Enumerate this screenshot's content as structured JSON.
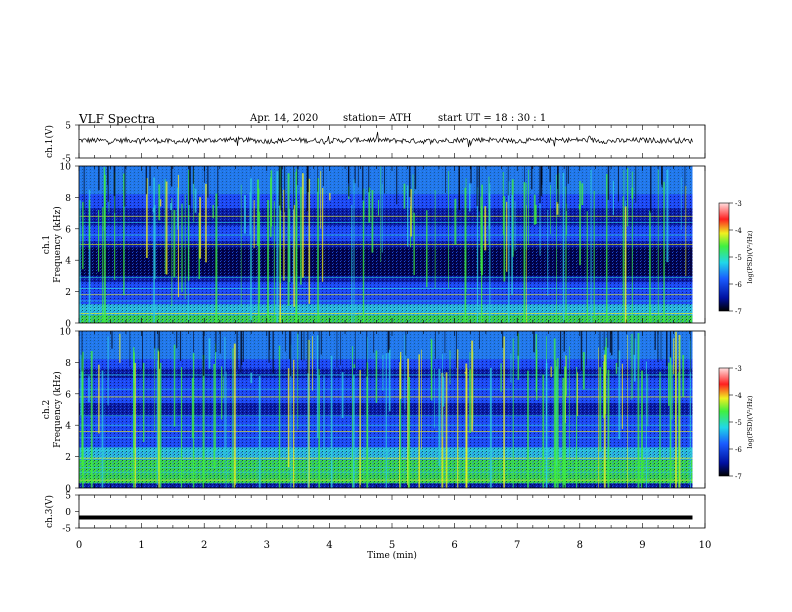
{
  "header": {
    "title": "VLF  Spectra",
    "date": "Apr. 14, 2020",
    "station": "station= ATH",
    "start": "start  UT  =    18 : 30 : 1"
  },
  "chart_data": [
    {
      "type": "line",
      "panel": "ch1-waveform",
      "ylabel": "ch.1(V)",
      "ylim": [
        -5,
        5
      ],
      "yticks": [
        "5",
        "-5"
      ],
      "xlim": [
        0,
        10
      ],
      "x": [
        0,
        0.5,
        1,
        1.5,
        2,
        2.5,
        3,
        3.5,
        4,
        4.5,
        5,
        5.5,
        6,
        6.5,
        7,
        7.5,
        8,
        8.5,
        9,
        9.5,
        9.8
      ],
      "y": [
        0.4,
        0.2,
        0.5,
        0.0,
        0.3,
        0.6,
        0.1,
        0.4,
        0.2,
        0.5,
        0.3,
        0.1,
        0.4,
        0.6,
        0.2,
        0.3,
        0.5,
        0.1,
        0.4,
        0.3,
        0.2
      ],
      "color": "#000000"
    },
    {
      "type": "heatmap",
      "panel": "ch1-spectrogram",
      "ylabel": "ch.1\nFrequency  (kHz)",
      "ylim": [
        0,
        10
      ],
      "yticks": [
        "0",
        "2",
        "4",
        "6",
        "8",
        "10"
      ],
      "xlim": [
        0,
        10
      ],
      "colorbar": {
        "label": "log(PSD)(V²/Hz)",
        "ticks": [
          "-3",
          "-4",
          "-5",
          "-6",
          "-7"
        ],
        "range": [
          -7,
          -3
        ]
      }
    },
    {
      "type": "heatmap",
      "panel": "ch2-spectrogram",
      "ylabel": "ch.2\nFrequency  (kHz)",
      "ylim": [
        0,
        10
      ],
      "yticks": [
        "0",
        "2",
        "4",
        "6",
        "8",
        "10"
      ],
      "xlim": [
        0,
        10
      ],
      "colorbar": {
        "label": "log(PSD)(V²/Hz)",
        "ticks": [
          "-3",
          "-4",
          "-5",
          "-6",
          "-7"
        ],
        "range": [
          -7,
          -3
        ]
      }
    },
    {
      "type": "line",
      "panel": "ch3-waveform",
      "ylabel": "ch.3(V)",
      "ylim": [
        -5,
        5
      ],
      "yticks": [
        "5",
        "0",
        "-5"
      ],
      "xlim": [
        0,
        10
      ],
      "x": [
        0,
        9.8
      ],
      "y": [
        -1.8,
        -1.8
      ],
      "color": "#000000"
    }
  ],
  "xaxis": {
    "label": "Time  (min)",
    "ticks": [
      "0",
      "1",
      "2",
      "3",
      "4",
      "5",
      "6",
      "7",
      "8",
      "9",
      "10"
    ]
  },
  "colors": {
    "deep": "#000040",
    "navy": "#0a1aa0",
    "blue": "#1f4fff",
    "cyan": "#2fd0e0",
    "green": "#3ff03f",
    "yellow": "#f0f020",
    "red": "#ff2020",
    "pink": "#ffc8c8"
  }
}
